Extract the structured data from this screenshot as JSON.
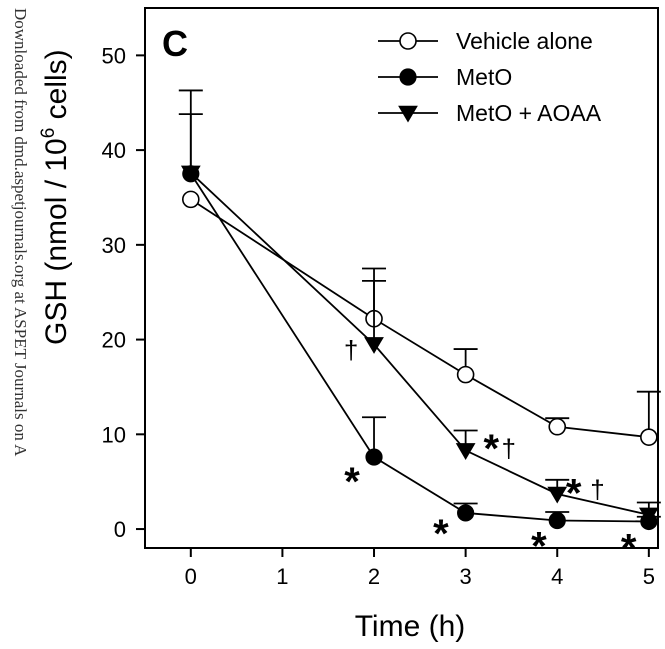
{
  "watermark": "Downloaded from dmd.aspetjournals.org at ASPET Journals on A",
  "chart_data": {
    "type": "line",
    "panel_label": "C",
    "xlabel": "Time (h)",
    "ylabel": "GSH (nmol / 10",
    "ylabel_sup": "6",
    "ylabel_end": " cells)",
    "xlim": [
      -0.5,
      5.1
    ],
    "ylim": [
      -2,
      55
    ],
    "xticks": [
      0,
      1,
      2,
      3,
      4,
      5
    ],
    "yticks": [
      0,
      10,
      20,
      30,
      40,
      50
    ],
    "legend_position": "top-right",
    "series": [
      {
        "name": "Vehicle alone",
        "marker": "circle-open",
        "x": [
          0,
          2,
          3,
          4,
          5
        ],
        "y": [
          34.8,
          22.2,
          16.3,
          10.8,
          9.7
        ],
        "err": [
          0,
          4.0,
          2.7,
          0.9,
          4.8
        ]
      },
      {
        "name": "MetO",
        "marker": "circle-filled",
        "x": [
          0,
          2,
          3,
          4,
          5
        ],
        "y": [
          37.5,
          7.6,
          1.7,
          0.9,
          0.8
        ],
        "err": [
          6.3,
          4.2,
          1.0,
          0.9,
          0.5
        ]
      },
      {
        "name": "MetO + AOAA",
        "marker": "triangle-down-filled",
        "x": [
          0,
          2,
          3,
          4,
          5
        ],
        "y": [
          37.6,
          19.5,
          8.3,
          3.7,
          1.5
        ],
        "err": [
          8.7,
          8.0,
          2.1,
          1.5,
          1.3
        ]
      }
    ],
    "annotations": [
      {
        "text": "*",
        "x": 1.76,
        "y": 5.5
      },
      {
        "text": "†",
        "x": 1.75,
        "y": 19.0
      },
      {
        "text": "*",
        "x": 2.73,
        "y": 0.0
      },
      {
        "text": "*",
        "x": 3.28,
        "y": 9.0
      },
      {
        "text": "†",
        "x": 3.47,
        "y": 8.6
      },
      {
        "text": "*",
        "x": 3.8,
        "y": -1.3
      },
      {
        "text": "*",
        "x": 4.18,
        "y": 4.3
      },
      {
        "text": "†",
        "x": 4.44,
        "y": 4.3
      },
      {
        "text": "*",
        "x": 4.78,
        "y": -1.5
      }
    ]
  }
}
